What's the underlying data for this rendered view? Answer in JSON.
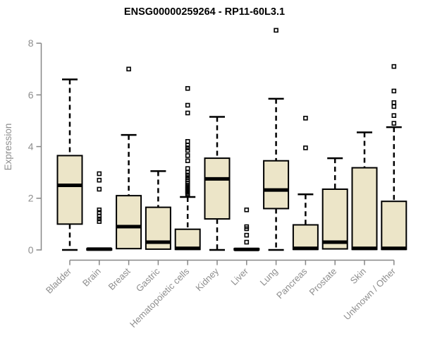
{
  "chart_data": {
    "type": "boxplot",
    "title": "ENSG00000259264 - RP11-60L3.1",
    "ylabel": "Expression",
    "xlabel": "",
    "ylim": [
      0,
      8.75
    ],
    "yticks": [
      "0",
      "2",
      "4",
      "6",
      "8"
    ],
    "ytick_values": [
      0,
      2,
      4,
      6,
      8
    ],
    "grid": false,
    "legend": "none",
    "colors": {
      "box_fill": "#ece5c8",
      "box_stroke": "#000000",
      "median": "#000000",
      "whisker": "#000000",
      "outlier": "#000000",
      "axis": "#878787",
      "tick_label": "#8e8e8e",
      "title": "#000000"
    },
    "categories": [
      "Bladder",
      "Brain",
      "Breast",
      "Gastric",
      "Hematopoietic cells",
      "Kidney",
      "Liver",
      "Lung",
      "Pancreas",
      "Prostate",
      "Skin",
      "Unknown / Other"
    ],
    "series": [
      {
        "category": "Bladder",
        "whisker_low": 0,
        "q1": 1.0,
        "median": 2.5,
        "q3": 3.65,
        "whisker_high": 6.6,
        "outliers": []
      },
      {
        "category": "Brain",
        "whisker_low": 0,
        "q1": 0,
        "median": 0.03,
        "q3": 0.05,
        "whisker_high": 0.05,
        "outliers": [
          2.95,
          2.7,
          2.35,
          1.55,
          1.45,
          1.3,
          1.2,
          1.1
        ]
      },
      {
        "category": "Breast",
        "whisker_low": 0,
        "q1": 0.05,
        "median": 0.9,
        "q3": 2.1,
        "whisker_high": 4.45,
        "outliers": [
          7.0
        ]
      },
      {
        "category": "Gastric",
        "whisker_low": 0,
        "q1": 0.03,
        "median": 0.3,
        "q3": 1.65,
        "whisker_high": 3.05,
        "outliers": []
      },
      {
        "category": "Hematopoietic cells",
        "whisker_low": 0,
        "q1": 0.02,
        "median": 0.06,
        "q3": 0.8,
        "whisker_high": 2.05,
        "outliers": [
          6.25,
          5.6,
          5.3,
          4.2,
          4.05,
          3.95,
          3.85,
          3.65,
          3.45,
          3.15,
          3.0,
          2.9,
          2.8,
          2.72,
          2.65,
          2.58,
          2.5,
          2.45,
          2.4,
          2.35,
          2.3,
          2.25,
          2.2,
          2.15
        ]
      },
      {
        "category": "Kidney",
        "whisker_low": 0,
        "q1": 1.2,
        "median": 2.75,
        "q3": 3.55,
        "whisker_high": 5.15,
        "outliers": []
      },
      {
        "category": "Liver",
        "whisker_low": 0,
        "q1": 0,
        "median": 0.02,
        "q3": 0.05,
        "whisker_high": 0.05,
        "outliers": [
          1.55,
          0.9,
          0.82,
          0.57,
          0.3
        ]
      },
      {
        "category": "Lung",
        "whisker_low": 0,
        "q1": 1.6,
        "median": 2.32,
        "q3": 3.45,
        "whisker_high": 5.85,
        "outliers": [
          8.5
        ]
      },
      {
        "category": "Pancreas",
        "whisker_low": 0,
        "q1": 0.02,
        "median": 0.06,
        "q3": 0.97,
        "whisker_high": 2.15,
        "outliers": [
          5.1,
          3.95
        ]
      },
      {
        "category": "Prostate",
        "whisker_low": 0,
        "q1": 0.04,
        "median": 0.3,
        "q3": 2.35,
        "whisker_high": 3.55,
        "outliers": []
      },
      {
        "category": "Skin",
        "whisker_low": 0,
        "q1": 0.02,
        "median": 0.06,
        "q3": 3.18,
        "whisker_high": 4.55,
        "outliers": []
      },
      {
        "category": "Unknown / Other",
        "whisker_low": 0,
        "q1": 0.02,
        "median": 0.06,
        "q3": 1.88,
        "whisker_high": 4.75,
        "outliers": [
          7.1,
          6.15,
          5.7,
          5.55,
          5.2,
          4.9
        ]
      }
    ]
  }
}
